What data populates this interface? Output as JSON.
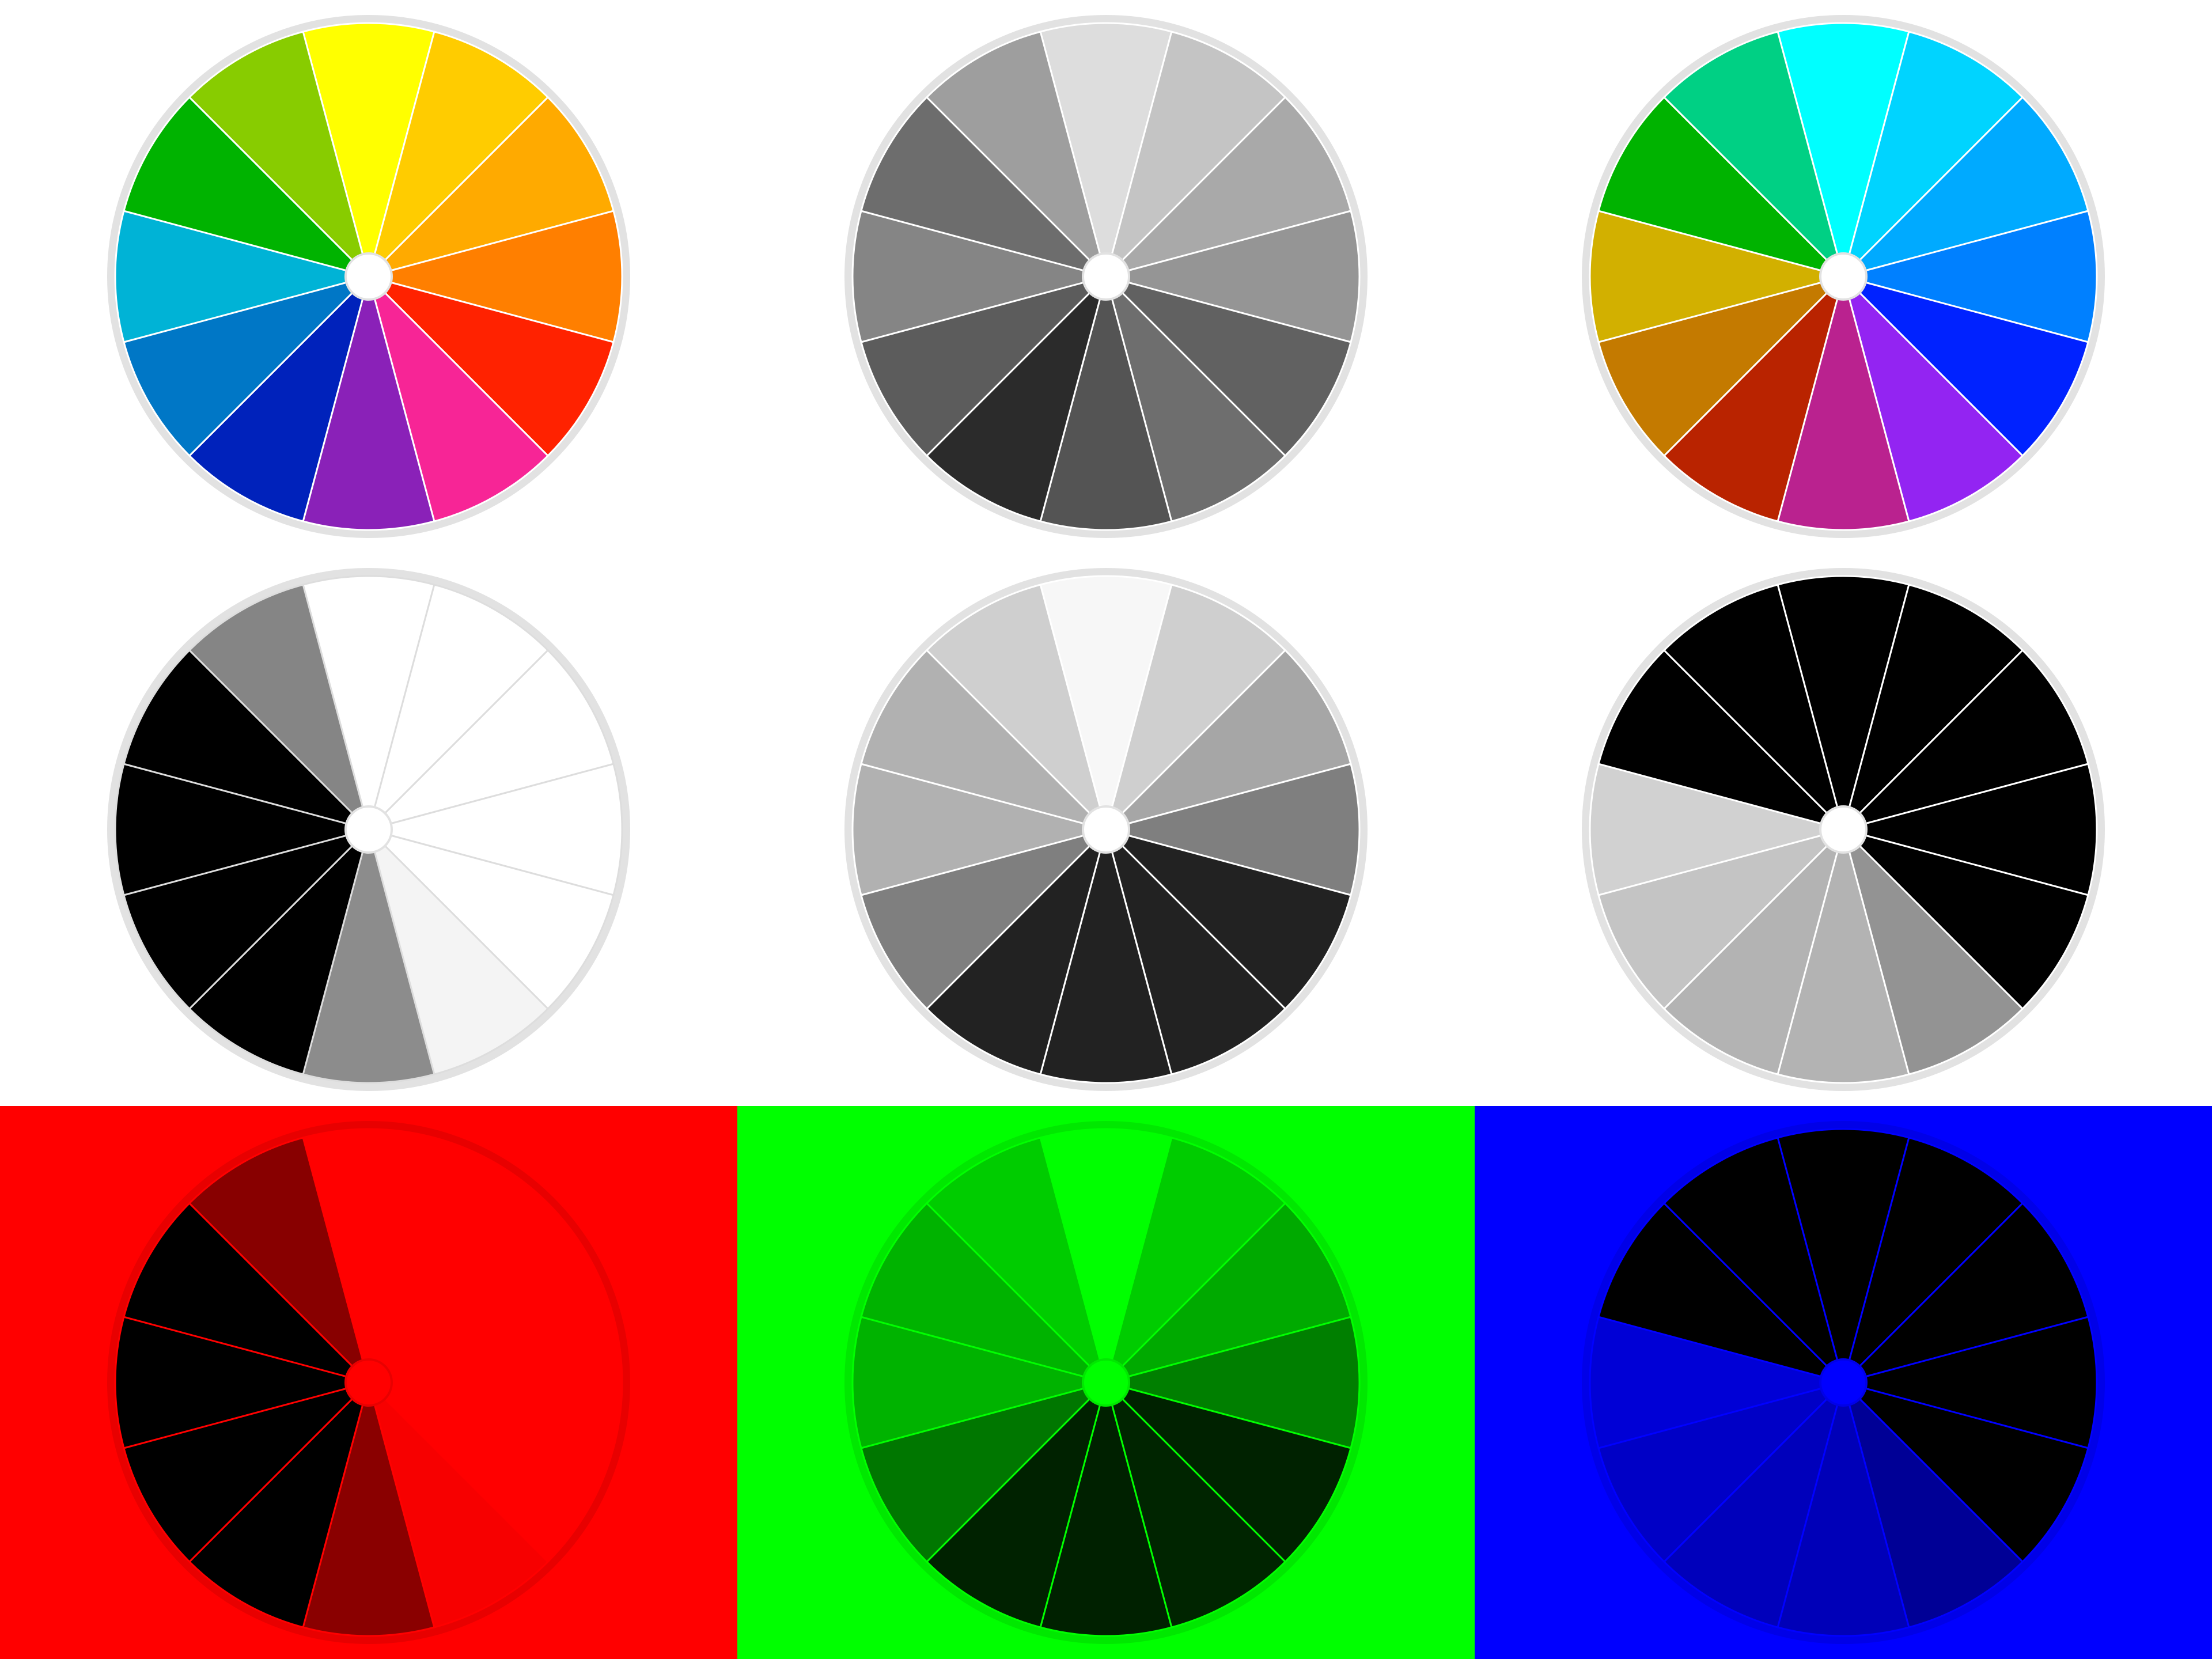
{
  "wheels": [
    {
      "id": "color",
      "background": "#ffffff",
      "rim_color": "#e2e2e2",
      "divider_color": "#ffffff",
      "hub_color": "#ffffff",
      "segments": [
        "#ffff00",
        "#ffcc00",
        "#ffaa00",
        "#ff7f00",
        "#ff2200",
        "#f72596",
        "#8a21b8",
        "#0022bb",
        "#0077c6",
        "#00b3d6",
        "#00b300",
        "#88cc00"
      ]
    },
    {
      "id": "grayscale",
      "background": "#ffffff",
      "rim_color": "#e2e2e2",
      "divider_color": "#ffffff",
      "hub_color": "#ffffff",
      "segments": [
        "#dddddd",
        "#c4c4c4",
        "#a9a9a9",
        "#959595",
        "#616161",
        "#6e6e6e",
        "#545454",
        "#2b2b2b",
        "#5c5c5c",
        "#858585",
        "#6d6d6d",
        "#9e9e9e"
      ]
    },
    {
      "id": "alternate-color",
      "background": "#ffffff",
      "rim_color": "#e2e2e2",
      "divider_color": "#ffffff",
      "hub_color": "#ffffff",
      "segments": [
        "#00ffff",
        "#00d4ff",
        "#00aaff",
        "#0080ff",
        "#0022ff",
        "#9324f2",
        "#ba228f",
        "#b92300",
        "#c47a00",
        "#d2b000",
        "#00b300",
        "#00d084"
      ]
    },
    {
      "id": "white-black",
      "background": "#ffffff",
      "rim_color": "#e2e2e2",
      "divider_color": "#dddddd",
      "hub_color": "#ffffff",
      "segments": [
        "#ffffff",
        "#ffffff",
        "#ffffff",
        "#ffffff",
        "#ffffff",
        "#f4f4f4",
        "#8c8c8c",
        "#000000",
        "#000000",
        "#000000",
        "#000000",
        "#858585"
      ]
    },
    {
      "id": "light-dark",
      "background": "#ffffff",
      "rim_color": "#e2e2e2",
      "divider_color": "#ffffff",
      "hub_color": "#ffffff",
      "segments": [
        "#f7f7f7",
        "#cfcfcf",
        "#a6a6a6",
        "#7f7f7f",
        "#222222",
        "#222222",
        "#222222",
        "#222222",
        "#7f7f7f",
        "#b1b1b1",
        "#b1b1b1",
        "#cfcfcf"
      ]
    },
    {
      "id": "black-light",
      "background": "#ffffff",
      "rim_color": "#e2e2e2",
      "divider_color": "#ffffff",
      "hub_color": "#ffffff",
      "segments": [
        "#000000",
        "#000000",
        "#000000",
        "#000000",
        "#000000",
        "#939393",
        "#b3b3b3",
        "#b3b3b3",
        "#c4c4c4",
        "#d1d1d1",
        "#000000",
        "#000000"
      ]
    },
    {
      "id": "red-channel",
      "background": "#ff0000",
      "rim_color": "#e80000",
      "divider_color": "#ff0000",
      "hub_color": "#ff0000",
      "segments": [
        "#ff0000",
        "#ff0000",
        "#ff0000",
        "#ff0000",
        "#ff0000",
        "#f70000",
        "#8a0000",
        "#000000",
        "#000000",
        "#000000",
        "#000000",
        "#880000"
      ]
    },
    {
      "id": "green-channel",
      "background": "#00ff00",
      "rim_color": "#00e800",
      "divider_color": "#00ff00",
      "hub_color": "#00ff00",
      "segments": [
        "#00ff00",
        "#00cc00",
        "#00aa00",
        "#007f00",
        "#002200",
        "#002500",
        "#002100",
        "#002200",
        "#007700",
        "#00b300",
        "#00b300",
        "#00cc00"
      ]
    },
    {
      "id": "blue-channel",
      "background": "#0000ff",
      "rim_color": "#0000e8",
      "divider_color": "#0000ff",
      "hub_color": "#0000ff",
      "segments": [
        "#000000",
        "#000000",
        "#000000",
        "#000000",
        "#000000",
        "#000096",
        "#0000b8",
        "#0000bb",
        "#0000c6",
        "#0000d6",
        "#000000",
        "#000000"
      ]
    }
  ]
}
